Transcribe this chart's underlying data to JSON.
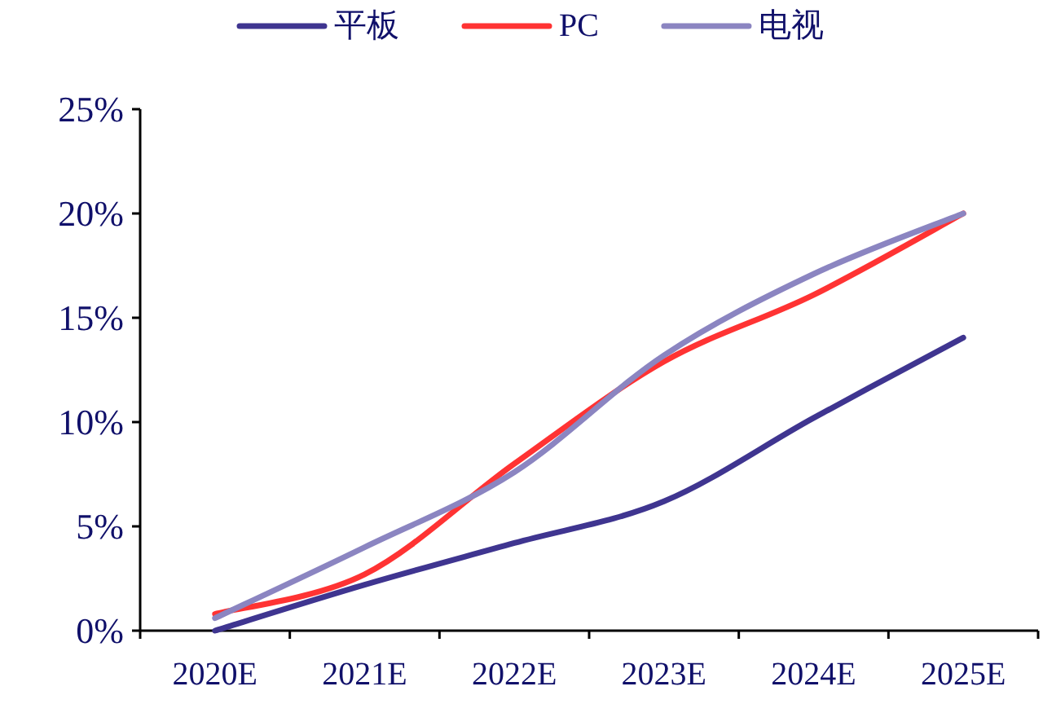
{
  "chart_data": {
    "type": "line",
    "categories": [
      "2020E",
      "2021E",
      "2022E",
      "2023E",
      "2024E",
      "2025E"
    ],
    "series": [
      {
        "name": "平板",
        "color": "#3f3590",
        "values": [
          0,
          2.2,
          4.2,
          6.2,
          10.2,
          14.05
        ]
      },
      {
        "name": "PC",
        "color": "#ff3333",
        "values": [
          0.8,
          2.7,
          8.0,
          12.9,
          16.1,
          20
        ]
      },
      {
        "name": "电视",
        "color": "#8b85c1",
        "values": [
          0.6,
          4.0,
          7.6,
          13.2,
          17.1,
          20
        ]
      }
    ],
    "ylim": [
      0,
      25
    ],
    "yticks": [
      {
        "value": 0,
        "label": "0%"
      },
      {
        "value": 5,
        "label": "5%"
      },
      {
        "value": 10,
        "label": "10%"
      },
      {
        "value": 15,
        "label": "15%"
      },
      {
        "value": 20,
        "label": "20%"
      },
      {
        "value": 25,
        "label": "25%"
      }
    ],
    "grid": false,
    "legend": "top",
    "marker": "none",
    "line_style": "solid"
  }
}
